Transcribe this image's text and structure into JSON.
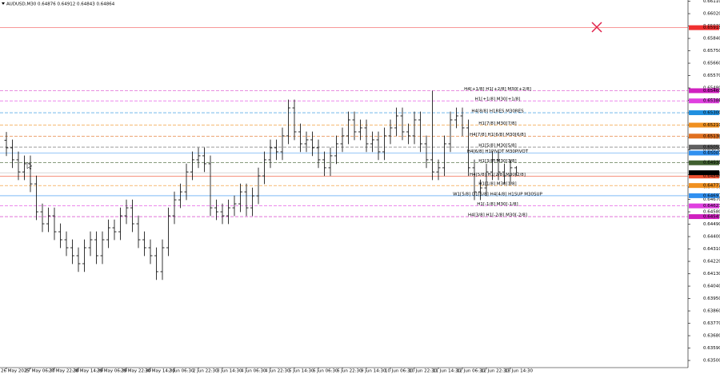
{
  "chart_data": {
    "type": "candlestick",
    "title": "AUDUSD,M30 0.64876 0.64912 0.64843 0.64864",
    "bar_color": "#000000",
    "categories": [
      "26 May 2025",
      null,
      null,
      null,
      "27 May 06:30",
      null,
      null,
      null,
      "27 May 22:30",
      null,
      null,
      null,
      "28 May 14:30",
      null,
      null,
      null,
      "29 May 06:30",
      null,
      null,
      null,
      "29 May 22:30",
      null,
      null,
      null,
      "30 May 14:30",
      null,
      null,
      null,
      "2 Jun 06:30",
      null,
      null,
      null,
      "2 Jun 22:30",
      null,
      null,
      null,
      "3 Jun 14:30",
      null,
      null,
      null,
      "4 Jun 06:30",
      null,
      null,
      null,
      "4 Jun 22:30",
      null,
      null,
      null,
      "5 Jun 14:30",
      null,
      null,
      null,
      "6 Jun 06:30",
      null,
      null,
      null,
      "6 Jun 22:30",
      null,
      null,
      null,
      "9 Jun 14:30",
      null,
      null,
      null,
      "10 Jun 06:30",
      null,
      null,
      null,
      "10 Jun 22:30",
      null,
      null,
      null,
      "11 Jun 14:30",
      null,
      null,
      null,
      "12 Jun 06:30",
      null,
      null,
      null,
      "12 Jun 22:30",
      null,
      null,
      null,
      "13 Jun 14:30",
      null
    ],
    "open": [
      0.651,
      0.65045,
      0.64958,
      0.6487,
      0.64929,
      0.64783,
      0.6458,
      0.64493,
      0.64551,
      0.64435,
      0.64377,
      0.64319,
      0.64261,
      0.64203,
      0.64319,
      0.64377,
      0.64261,
      0.64377,
      0.64464,
      0.64435,
      0.64551,
      0.64609,
      0.64493,
      0.64377,
      0.64319,
      0.64261,
      0.64145,
      0.64319,
      0.64551,
      0.64667,
      0.64725,
      0.6487,
      0.64958,
      0.64987,
      0.64929,
      0.64609,
      0.6458,
      0.64551,
      0.64609,
      0.64638,
      0.64725,
      0.64609,
      0.64696,
      0.64841,
      0.64958,
      0.65045,
      0.65016,
      0.65132,
      0.65335,
      0.65161,
      0.65074,
      0.65103,
      0.65045,
      0.64958,
      0.649,
      0.64987,
      0.65074,
      0.65132,
      0.65248,
      0.65161,
      0.6519,
      0.65074,
      0.65103,
      0.65016,
      0.65132,
      0.6519,
      0.65277,
      0.65161,
      0.65132,
      0.65248,
      0.65074,
      0.64958,
      0.6487,
      0.649,
      0.65074,
      0.65248,
      0.65277,
      0.6519,
      0.649,
      0.64725,
      0.64754,
      0.6487,
      0.64958,
      0.6487,
      0.64841,
      0.649
    ],
    "high": [
      0.6516,
      0.65105,
      0.65018,
      0.64989,
      0.64989,
      0.64843,
      0.6464,
      0.64611,
      0.64611,
      0.64495,
      0.64437,
      0.64379,
      0.64321,
      0.64379,
      0.64437,
      0.64437,
      0.64437,
      0.64524,
      0.64524,
      0.64611,
      0.64669,
      0.64669,
      0.64553,
      0.64437,
      0.64379,
      0.64321,
      0.64379,
      0.64611,
      0.64727,
      0.64785,
      0.6493,
      0.65018,
      0.65047,
      0.65047,
      0.64989,
      0.64669,
      0.6464,
      0.64669,
      0.64698,
      0.64785,
      0.64785,
      0.64756,
      0.64901,
      0.65018,
      0.65105,
      0.65105,
      0.65192,
      0.65395,
      0.65395,
      0.65221,
      0.65163,
      0.65163,
      0.65105,
      0.65018,
      0.65047,
      0.65134,
      0.65192,
      0.65308,
      0.65308,
      0.6525,
      0.6525,
      0.65163,
      0.65163,
      0.65192,
      0.6525,
      0.65337,
      0.65337,
      0.65221,
      0.65308,
      0.65308,
      0.65134,
      0.6546,
      0.6496,
      0.65134,
      0.65308,
      0.65337,
      0.65337,
      0.6525,
      0.6496,
      0.64814,
      0.6493,
      0.65018,
      0.65018,
      0.6493,
      0.6496,
      0.64912
    ],
    "low": [
      0.64985,
      0.64898,
      0.6481,
      0.6481,
      0.64723,
      0.6452,
      0.64433,
      0.64433,
      0.64375,
      0.64317,
      0.64259,
      0.64201,
      0.64143,
      0.64143,
      0.64259,
      0.64201,
      0.64201,
      0.64317,
      0.64375,
      0.64375,
      0.64491,
      0.64433,
      0.64317,
      0.64259,
      0.64201,
      0.64085,
      0.64085,
      0.64259,
      0.64491,
      0.64607,
      0.64665,
      0.6481,
      0.64898,
      0.64869,
      0.64549,
      0.6452,
      0.64491,
      0.64491,
      0.64549,
      0.64578,
      0.64549,
      0.64549,
      0.64636,
      0.64781,
      0.64898,
      0.64956,
      0.64956,
      0.65072,
      0.65101,
      0.65014,
      0.65014,
      0.64985,
      0.64898,
      0.6484,
      0.6484,
      0.64927,
      0.65014,
      0.65072,
      0.65101,
      0.65101,
      0.65014,
      0.65014,
      0.64956,
      0.64956,
      0.65072,
      0.6513,
      0.65101,
      0.65072,
      0.65072,
      0.65014,
      0.64898,
      0.6481,
      0.6481,
      0.6484,
      0.65014,
      0.65188,
      0.6513,
      0.6484,
      0.64665,
      0.64665,
      0.64694,
      0.6481,
      0.6481,
      0.64781,
      0.64781,
      0.64843
    ],
    "close": [
      0.65045,
      0.64958,
      0.6487,
      0.64929,
      0.64783,
      0.6458,
      0.64493,
      0.64551,
      0.64435,
      0.64377,
      0.64319,
      0.64261,
      0.64203,
      0.64319,
      0.64377,
      0.64261,
      0.64377,
      0.64464,
      0.64435,
      0.64551,
      0.64609,
      0.64493,
      0.64377,
      0.64319,
      0.64261,
      0.64145,
      0.64319,
      0.64551,
      0.64667,
      0.64725,
      0.6487,
      0.64958,
      0.64987,
      0.64929,
      0.64609,
      0.6458,
      0.64551,
      0.64609,
      0.64638,
      0.64725,
      0.64609,
      0.64696,
      0.64841,
      0.64958,
      0.65045,
      0.65016,
      0.65132,
      0.65335,
      0.65161,
      0.65074,
      0.65103,
      0.65045,
      0.64958,
      0.649,
      0.64987,
      0.65074,
      0.65132,
      0.65248,
      0.65161,
      0.6519,
      0.65074,
      0.65103,
      0.65016,
      0.65132,
      0.6519,
      0.65277,
      0.65161,
      0.65132,
      0.65248,
      0.65074,
      0.64958,
      0.6487,
      0.649,
      0.65074,
      0.65248,
      0.65277,
      0.6519,
      0.649,
      0.64725,
      0.64754,
      0.6487,
      0.64958,
      0.6487,
      0.64841,
      0.649,
      0.64864
    ],
    "ylim": [
      0.63448,
      0.66119
    ],
    "yticks": [
      {
        "value": 0.635,
        "label": "0.63500"
      },
      {
        "value": 0.6359,
        "label": "0.63590"
      },
      {
        "value": 0.6368,
        "label": "0.63680"
      },
      {
        "value": 0.6377,
        "label": "0.63770"
      },
      {
        "value": 0.6386,
        "label": "0.63860"
      },
      {
        "value": 0.6395,
        "label": "0.63950"
      },
      {
        "value": 0.6404,
        "label": "0.64040"
      },
      {
        "value": 0.6413,
        "label": "0.64130"
      },
      {
        "value": 0.6422,
        "label": "0.64220"
      },
      {
        "value": 0.6431,
        "label": "0.64310"
      },
      {
        "value": 0.644,
        "label": "0.64400"
      },
      {
        "value": 0.6449,
        "label": "0.64490"
      },
      {
        "value": 0.6458,
        "label": "0.64580"
      },
      {
        "value": 0.6467,
        "label": "0.64670"
      },
      {
        "value": 0.6476,
        "label": "0.64760"
      },
      {
        "value": 0.6485,
        "label": "0.64850"
      },
      {
        "value": 0.6494,
        "label": "0.64940"
      },
      {
        "value": 0.6503,
        "label": "0.65030"
      },
      {
        "value": 0.6512,
        "label": "0.65120"
      },
      {
        "value": 0.6521,
        "label": "0.65210"
      },
      {
        "value": 0.653,
        "label": "0.65300"
      },
      {
        "value": 0.6539,
        "label": "0.65390"
      },
      {
        "value": 0.6548,
        "label": "0.65480"
      },
      {
        "value": 0.6557,
        "label": "0.65570"
      },
      {
        "value": 0.6566,
        "label": "0.65660"
      },
      {
        "value": 0.6575,
        "label": "0.65750"
      },
      {
        "value": 0.6584,
        "label": "0.65840"
      },
      {
        "value": 0.6593,
        "label": "0.65930"
      },
      {
        "value": 0.6602,
        "label": "0.66020"
      },
      {
        "value": 0.6611,
        "label": "0.66110"
      }
    ],
    "levels": [
      {
        "value": 0.65918,
        "label": "0.65918",
        "color": "#f03030",
        "dash": false
      },
      {
        "value": 0.6546,
        "label": "0.65460",
        "name": "H4[+1/8] H1[+2/8] M30[+2/8]",
        "color": "#d020c0",
        "dash": true
      },
      {
        "value": 0.65386,
        "label": "0.65386",
        "name": "H1[+1/8] M30[+1/8]",
        "color": "#e040e0",
        "dash": true
      },
      {
        "value": 0.653,
        "label": "0.65300",
        "name": "H4[8/8] H1RES M30RES",
        "color": "#2090e0",
        "dash": true
      },
      {
        "value": 0.6521,
        "label": "0.65210",
        "name": "H1[7/8] M30[7/8]",
        "color": "#f09020",
        "dash": true
      },
      {
        "value": 0.6513,
        "label": "0.65130",
        "name": "H4[7/8] H1[6/8] M30[6/8]",
        "color": "#e07020",
        "dash": true
      },
      {
        "value": 0.6505,
        "label": "0.65050",
        "name": "H1[5/8] M30[5/8]",
        "color": "#606060",
        "dash": true
      },
      {
        "value": 0.65007,
        "label": "0.65007",
        "name": "H4[6/8] H1PIVOT M30PIVOT",
        "color": "#3090f0",
        "dash": false
      },
      {
        "value": 0.64936,
        "label": "0.64936",
        "name": "H1[3/8] M30[3/8]",
        "color": "#406030",
        "dash": true
      },
      {
        "value": 0.6484,
        "label": "0.64840",
        "name": "H4[5/8] H1[2/8] M30[2/8]",
        "color": "#f05030",
        "dash": false
      },
      {
        "value": 0.64771,
        "label": "0.64771",
        "name": "H1[1/8] M30[1/8]",
        "color": "#f09020",
        "dash": true
      },
      {
        "value": 0.64697,
        "label": "0.64697",
        "name": "W1[5/8] D1[5/8] H4[4/8] H1SUP M30SUP",
        "color": "#3090f0",
        "dash": false
      },
      {
        "value": 0.64623,
        "label": "0.64623",
        "name": "H1[-1/8] M30[-1/8]",
        "color": "#e040e0",
        "dash": true
      },
      {
        "value": 0.64545,
        "label": "0.64545",
        "name": "H4[3/8] H1[-2/8] M30[-2/8]",
        "color": "#d020c0",
        "dash": true
      }
    ],
    "current_price": {
      "value": 0.64864,
      "label": "0.64864",
      "color": "#000000"
    }
  }
}
